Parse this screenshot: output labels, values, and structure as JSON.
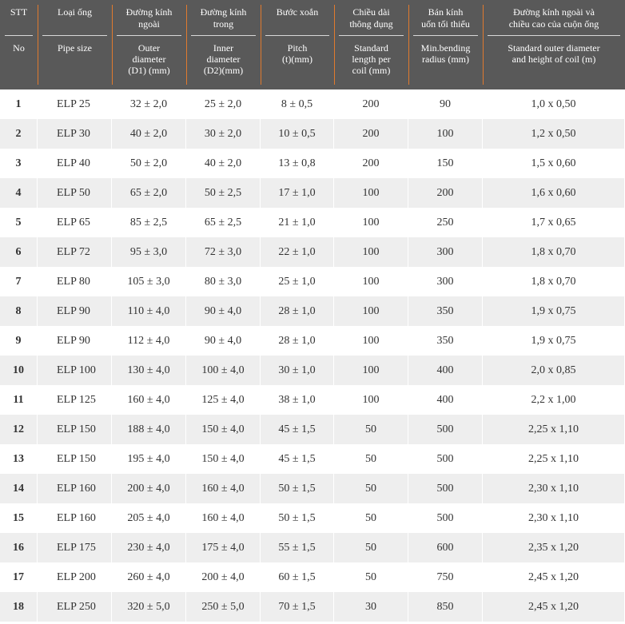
{
  "header": {
    "columns": [
      {
        "vi": "STT",
        "en": "No"
      },
      {
        "vi": "Loại ống",
        "en": "Pipe size"
      },
      {
        "vi": "Đường kính\nngoài",
        "en": "Outer\ndiameter\n(D1) (mm)"
      },
      {
        "vi": "Đường kính\ntrong",
        "en": "Inner\ndiameter\n(D2)(mm)"
      },
      {
        "vi": "Bước xoắn",
        "en": "Pitch\n(t)(mm)"
      },
      {
        "vi": "Chiều dài\nthông dụng",
        "en": "Standard\nlength per\ncoil (mm)"
      },
      {
        "vi": "Bán kính\nuốn tối thiểu",
        "en": "Min.bending\nradius (mm)"
      },
      {
        "vi": "Đường kính ngoài và\nchiều cao của cuộn ống",
        "en": "Standard outer diameter\nand height of coil (m)"
      }
    ]
  },
  "table": {
    "rows": [
      [
        "1",
        "ELP 25",
        "32 ± 2,0",
        "25 ± 2,0",
        "8 ± 0,5",
        "200",
        "90",
        "1,0 x 0,50"
      ],
      [
        "2",
        "ELP 30",
        "40 ± 2,0",
        "30 ± 2,0",
        "10 ± 0,5",
        "200",
        "100",
        "1,2 x 0,50"
      ],
      [
        "3",
        "ELP 40",
        "50 ± 2,0",
        "40 ± 2,0",
        "13 ± 0,8",
        "200",
        "150",
        "1,5 x 0,60"
      ],
      [
        "4",
        "ELP 50",
        "65 ± 2,0",
        "50 ± 2,5",
        "17 ± 1,0",
        "100",
        "200",
        "1,6 x 0,60"
      ],
      [
        "5",
        "ELP 65",
        "85 ± 2,5",
        "65 ± 2,5",
        "21 ± 1,0",
        "100",
        "250",
        "1,7 x 0,65"
      ],
      [
        "6",
        "ELP 72",
        "95 ± 3,0",
        "72 ± 3,0",
        "22 ± 1,0",
        "100",
        "300",
        "1,8 x 0,70"
      ],
      [
        "7",
        "ELP 80",
        "105 ± 3,0",
        "80 ± 3,0",
        "25 ± 1,0",
        "100",
        "300",
        "1,8 x 0,70"
      ],
      [
        "8",
        "ELP 90",
        "110 ± 4,0",
        "90 ± 4,0",
        "28 ± 1,0",
        "100",
        "350",
        "1,9 x 0,75"
      ],
      [
        "9",
        "ELP 90",
        "112 ± 4,0",
        "90 ± 4,0",
        "28 ± 1,0",
        "100",
        "350",
        "1,9 x 0,75"
      ],
      [
        "10",
        "ELP 100",
        "130 ± 4,0",
        "100 ± 4,0",
        "30 ± 1,0",
        "100",
        "400",
        "2,0 x 0,85"
      ],
      [
        "11",
        "ELP 125",
        "160 ± 4,0",
        "125 ± 4,0",
        "38 ± 1,0",
        "100",
        "400",
        "2,2 x 1,00"
      ],
      [
        "12",
        "ELP 150",
        "188 ± 4,0",
        "150 ± 4,0",
        "45 ± 1,5",
        "50",
        "500",
        "2,25 x 1,10"
      ],
      [
        "13",
        "ELP 150",
        "195 ± 4,0",
        "150 ± 4,0",
        "45 ± 1,5",
        "50",
        "500",
        "2,25 x 1,10"
      ],
      [
        "14",
        "ELP 160",
        "200 ± 4,0",
        "160 ± 4,0",
        "50 ± 1,5",
        "50",
        "500",
        "2,30 x 1,10"
      ],
      [
        "15",
        "ELP 160",
        "205 ± 4,0",
        "160 ± 4,0",
        "50 ± 1,5",
        "50",
        "500",
        "2,30 x 1,10"
      ],
      [
        "16",
        "ELP 175",
        "230 ± 4,0",
        "175 ± 4,0",
        "55 ± 1,5",
        "50",
        "600",
        "2,35 x 1,20"
      ],
      [
        "17",
        "ELP 200",
        "260 ± 4,0",
        "200 ± 4,0",
        "60 ± 1,5",
        "50",
        "750",
        "2,45 x 1,20"
      ],
      [
        "18",
        "ELP 250",
        "320 ± 5,0",
        "250 ± 5,0",
        "70 ± 1,5",
        "30",
        "850",
        "2,45 x 1,20"
      ]
    ]
  }
}
